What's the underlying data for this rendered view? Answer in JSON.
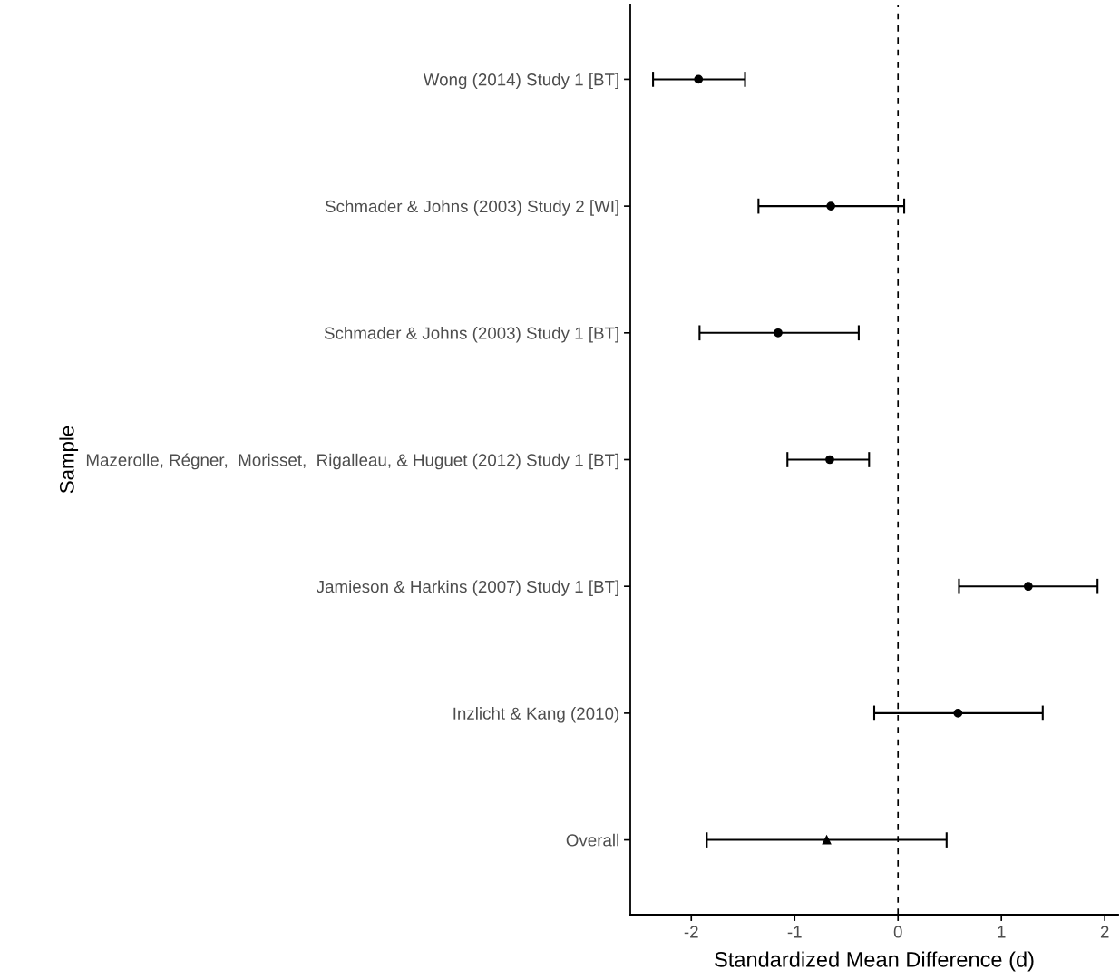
{
  "chart_data": {
    "type": "scatter",
    "orientation": "horizontal",
    "xlabel": "Standardized Mean Difference (d)",
    "ylabel": "Sample",
    "categories": [
      "Wong (2014) Study 1 [BT]",
      "Schmader & Johns (2003) Study 2 [WI]",
      "Schmader & Johns (2003) Study 1 [BT]",
      "Mazerolle, Régner,  Morisset,  Rigalleau, & Huguet (2012) Study 1 [BT]",
      "Jamieson & Harkins (2007) Study 1 [BT]",
      "Inzlicht & Kang (2010)",
      "Overall"
    ],
    "series": [
      {
        "color": "#000000",
        "marker": "circle",
        "values": [
          -1.93,
          -0.65,
          -1.16,
          -0.66,
          1.26,
          0.58,
          null
        ],
        "errors": [
          [
            -2.37,
            -1.48
          ],
          [
            -1.35,
            0.06
          ],
          [
            -1.92,
            -0.38
          ],
          [
            -1.07,
            -0.28
          ],
          [
            0.59,
            1.93
          ],
          [
            -0.23,
            1.4
          ],
          null
        ]
      },
      {
        "color": "#000000",
        "marker": "triangle",
        "values": [
          null,
          null,
          null,
          null,
          null,
          null,
          -0.69
        ],
        "errors": [
          null,
          null,
          null,
          null,
          null,
          null,
          [
            -1.85,
            0.47
          ]
        ]
      }
    ],
    "xlim": [
      -2.59,
      2.13
    ],
    "xticks": [
      -2,
      -1,
      0,
      1,
      2
    ],
    "ref_lines": [
      {
        "axis": "x",
        "value": 0,
        "line_style": "dashed",
        "color": "#000000"
      }
    ],
    "grid": false,
    "legend": false
  }
}
